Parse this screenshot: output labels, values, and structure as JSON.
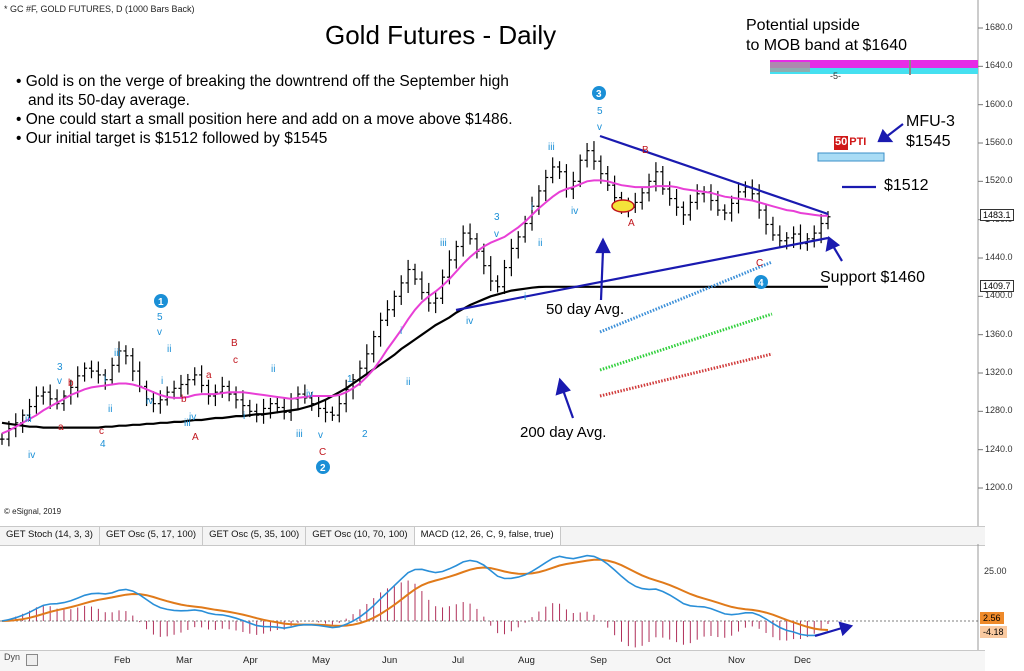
{
  "header": {
    "symbol_line": "* GC #F, GOLD FUTURES, D (1000 Bars Back)",
    "title": "Gold Futures - Daily"
  },
  "bullets": [
    "• Gold is on the verge of breaking the downtrend off the September high",
    "  and its 50-day average.",
    "• One could start a small position here and add on a move above $1486.",
    "• Our initial target is $1512 followed by $1545"
  ],
  "notes": {
    "upside_line1": "Potential upside",
    "upside_line2": "to MOB band at $1640",
    "mfu_line1": "MFU-3",
    "mfu_line2": "$1545",
    "target_1512": "$1512",
    "support": "Support $1460",
    "avg50": "50 day Avg.",
    "avg200": "200 day Avg.",
    "pti_num": "50",
    "pti_text": "PTI",
    "mob_marker": "-5-"
  },
  "footer": {
    "copyright": "© eSignal, 2019",
    "dyn": "Dyn"
  },
  "tabs": [
    "GET Stoch (14, 3, 3)",
    "GET Osc (5, 17, 100)",
    "GET Osc (5, 35, 100)",
    "GET Osc (10, 70, 100)",
    "MACD (12, 26, C, 9, false, true)"
  ],
  "active_tab": 4,
  "colors": {
    "ma50": "#e83fd6",
    "ma200": "#000000",
    "trend": "#1a1ab0",
    "wave_blue": "#1a8fd6",
    "wave_red": "#c0141c",
    "mob_magenta": "#e62be6",
    "mob_cyan": "#45e0f0",
    "macd_fast": "#2a8fd8",
    "macd_slow": "#e07a1a"
  },
  "chart_data": {
    "type": "line",
    "title": "Gold Futures - Daily",
    "price_axis": {
      "ticks": [
        1200,
        1240,
        1280,
        1320,
        1360,
        1400,
        1440,
        1480,
        1520,
        1560,
        1600,
        1640,
        1680
      ],
      "tick_labels": [
        "1200.0",
        "1240.0",
        "1280.0",
        "1320.0",
        "1360.0",
        "1400.0",
        "1440.0",
        "1480.0",
        "1520.0",
        "1560.0",
        "1600.0",
        "1640.0",
        "1680.0"
      ],
      "last_price": "1483.1",
      "ma200_last": "1409.7",
      "mob_level": "1640.0",
      "ylim": [
        1190,
        1700
      ]
    },
    "x_tick_labels": [
      "Feb",
      "Mar",
      "Apr",
      "May",
      "Jun",
      "Jul",
      "Aug",
      "Sep",
      "Oct",
      "Nov",
      "Dec"
    ],
    "close": [
      1251,
      1262,
      1268,
      1276,
      1285,
      1296,
      1300,
      1293,
      1288,
      1296,
      1305,
      1317,
      1325,
      1322,
      1318,
      1313,
      1328,
      1343,
      1338,
      1322,
      1306,
      1293,
      1288,
      1292,
      1300,
      1304,
      1308,
      1313,
      1318,
      1307,
      1296,
      1300,
      1306,
      1298,
      1292,
      1286,
      1280,
      1276,
      1283,
      1288,
      1284,
      1279,
      1293,
      1298,
      1294,
      1288,
      1283,
      1279,
      1276,
      1288,
      1303,
      1313,
      1325,
      1340,
      1358,
      1375,
      1386,
      1400,
      1414,
      1428,
      1418,
      1404,
      1393,
      1398,
      1420,
      1438,
      1452,
      1466,
      1460,
      1447,
      1432,
      1416,
      1410,
      1430,
      1450,
      1462,
      1476,
      1494,
      1510,
      1524,
      1535,
      1530,
      1512,
      1520,
      1542,
      1552,
      1541,
      1528,
      1516,
      1503,
      1495,
      1493,
      1498,
      1508,
      1520,
      1530,
      1512,
      1502,
      1493,
      1485,
      1498,
      1507,
      1509,
      1500,
      1490,
      1487,
      1497,
      1509,
      1514,
      1507,
      1490,
      1475,
      1464,
      1458,
      1461,
      1465,
      1455,
      1460,
      1466,
      1476,
      1483
    ],
    "ma50_text": "50 day Avg.",
    "ma200_text": "200 day Avg.",
    "ma50": [
      1257,
      1260,
      1264,
      1268,
      1272,
      1276,
      1281,
      1285,
      1289,
      1293,
      1297,
      1300,
      1303,
      1305,
      1306,
      1307,
      1308,
      1309,
      1309,
      1308,
      1306,
      1303,
      1300,
      1297,
      1295,
      1294,
      1294,
      1295,
      1297,
      1298,
      1298,
      1298,
      1299,
      1300,
      1300,
      1300,
      1299,
      1298,
      1297,
      1296,
      1295,
      1294,
      1293,
      1294,
      1295,
      1296,
      1296,
      1296,
      1296,
      1297,
      1300,
      1304,
      1309,
      1316,
      1324,
      1334,
      1345,
      1355,
      1365,
      1376,
      1386,
      1394,
      1400,
      1405,
      1411,
      1418,
      1426,
      1434,
      1441,
      1447,
      1452,
      1456,
      1459,
      1462,
      1467,
      1472,
      1478,
      1485,
      1492,
      1498,
      1504,
      1509,
      1512,
      1514,
      1517,
      1520,
      1521,
      1521,
      1520,
      1518,
      1516,
      1515,
      1514,
      1514,
      1514,
      1515,
      1515,
      1515,
      1514,
      1512,
      1511,
      1510,
      1509,
      1508,
      1506,
      1504,
      1503,
      1502,
      1501,
      1500,
      1498,
      1496,
      1494,
      1492,
      1490,
      1489,
      1487,
      1486,
      1485,
      1484,
      1484
    ],
    "ma200": [
      1268,
      1267,
      1266,
      1265,
      1264,
      1264,
      1263,
      1263,
      1263,
      1263,
      1263,
      1263,
      1263,
      1263,
      1263,
      1264,
      1264,
      1265,
      1265,
      1266,
      1266,
      1267,
      1267,
      1268,
      1268,
      1269,
      1269,
      1270,
      1271,
      1271,
      1272,
      1273,
      1273,
      1274,
      1275,
      1275,
      1276,
      1277,
      1277,
      1278,
      1279,
      1280,
      1281,
      1282,
      1284,
      1286,
      1289,
      1292,
      1296,
      1300,
      1304,
      1309,
      1314,
      1319,
      1324,
      1329,
      1334,
      1339,
      1345,
      1350,
      1355,
      1360,
      1365,
      1370,
      1374,
      1378,
      1383,
      1387,
      1391,
      1394,
      1397,
      1400,
      1402,
      1404,
      1406,
      1407,
      1408,
      1409,
      1409.7,
      1410,
      1410,
      1410,
      1410,
      1410,
      1410,
      1410,
      1410,
      1410,
      1410,
      1410,
      1410,
      1410,
      1410,
      1410,
      1410,
      1410,
      1410,
      1410,
      1410,
      1410,
      1410,
      1410,
      1410,
      1410,
      1410,
      1410,
      1410,
      1410,
      1410,
      1410,
      1410,
      1410,
      1410,
      1410,
      1410,
      1410,
      1410,
      1410,
      1410,
      1410,
      1410
    ],
    "macd_axis": {
      "tick_label": "25.00",
      "fast_last": "2.56",
      "slow_last": "-4.18"
    },
    "grid": false
  }
}
